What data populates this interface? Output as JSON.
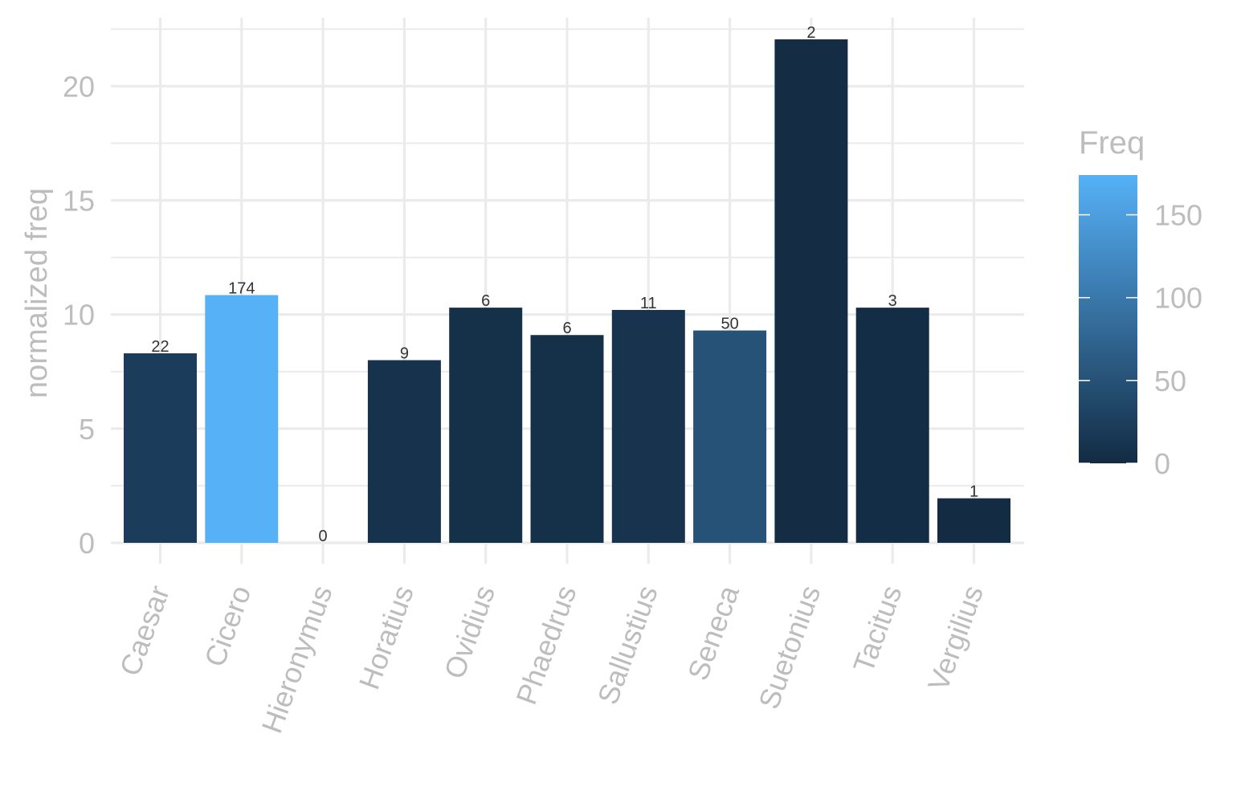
{
  "chart_data": {
    "type": "bar",
    "categories": [
      "Caesar",
      "Cicero",
      "Hieronymus",
      "Horatius",
      "Ovidius",
      "Phaedrus",
      "Sallustius",
      "Seneca",
      "Suetonius",
      "Tacitus",
      "Vergilius"
    ],
    "values": [
      8.3,
      10.85,
      0,
      8.0,
      10.3,
      9.1,
      10.2,
      9.3,
      22.05,
      10.3,
      1.95
    ],
    "fill_values": [
      22,
      174,
      0,
      9,
      6,
      6,
      11,
      50,
      2,
      3,
      1
    ],
    "labels": [
      "22",
      "174",
      "0",
      "9",
      "6",
      "6",
      "11",
      "50",
      "2",
      "3",
      "1"
    ],
    "xlabel": "",
    "ylabel": "normalized freq",
    "ylim": [
      0,
      23
    ],
    "yticks": [
      "0",
      "5",
      "10",
      "15",
      "20"
    ],
    "grid": true,
    "legend": {
      "title": "Freq",
      "position": "right",
      "ticks": [
        "0",
        "50",
        "100",
        "150"
      ],
      "range": [
        0,
        174
      ],
      "colors": {
        "low": "#132B43",
        "high": "#56B1F7"
      }
    }
  }
}
